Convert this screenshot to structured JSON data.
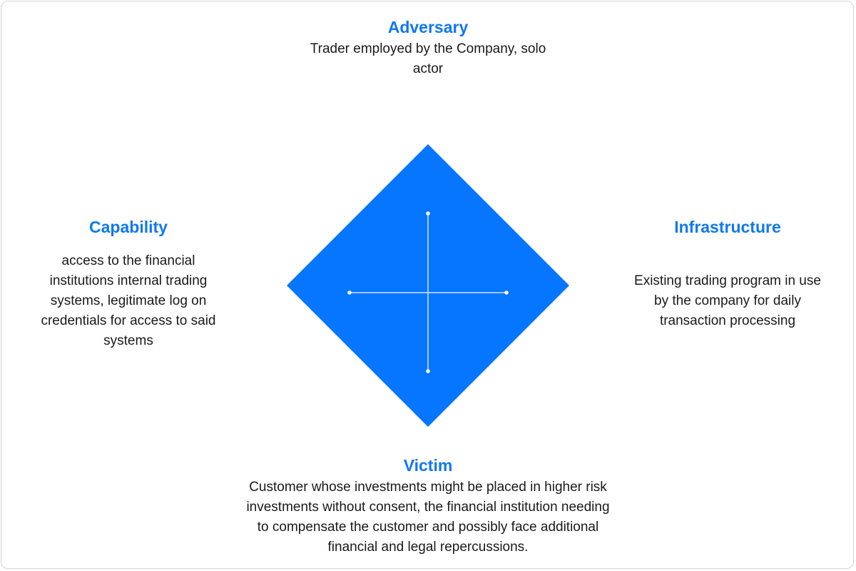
{
  "diagram": {
    "accent_color": "#0f78f2",
    "diamond_color": "#0676ff",
    "adversary": {
      "title": "Adversary",
      "text": "Trader employed by the Company, solo\nactor"
    },
    "capability": {
      "title": "Capability",
      "text": "access to the financial\ninstitutions internal trading\nsystems, legitimate log on\ncredentials for access to said\nsystems"
    },
    "infrastructure": {
      "title": "Infrastructure",
      "text": "Existing trading program in use\nby the company for daily\ntransaction processing"
    },
    "victim": {
      "title": "Victim",
      "text": "Customer whose investments might be placed in higher risk\ninvestments without consent, the financial institution needing\nto compensate the customer and possibly face additional\nfinancial and  legal repercussions."
    }
  }
}
